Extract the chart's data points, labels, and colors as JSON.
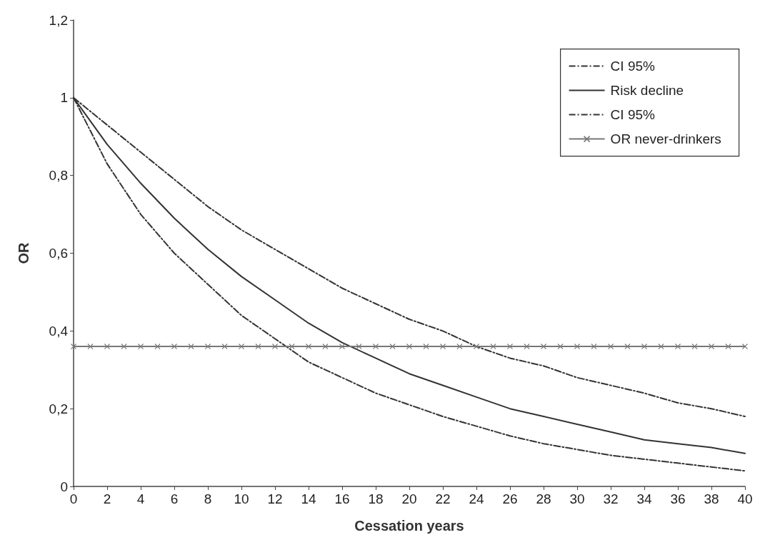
{
  "chart_data": {
    "type": "line",
    "xlabel": "Cessation years",
    "ylabel": "OR",
    "x": [
      0,
      2,
      4,
      6,
      8,
      10,
      12,
      14,
      16,
      18,
      20,
      22,
      24,
      26,
      28,
      30,
      32,
      34,
      36,
      38,
      40
    ],
    "series": [
      {
        "name": "CI 95%",
        "color": "#333333",
        "line_style": "dashed",
        "marker": "none",
        "values": [
          1,
          0.93,
          0.86,
          0.79,
          0.72,
          0.66,
          0.61,
          0.56,
          0.51,
          0.47,
          0.43,
          0.4,
          0.36,
          0.33,
          0.31,
          0.28,
          0.26,
          0.24,
          0.215,
          0.2,
          0.18
        ]
      },
      {
        "name": "Risk decline",
        "color": "#333333",
        "line_style": "solid",
        "marker": "none",
        "values": [
          1,
          0.88,
          0.78,
          0.69,
          0.61,
          0.54,
          0.48,
          0.42,
          0.37,
          0.33,
          0.29,
          0.26,
          0.23,
          0.2,
          0.18,
          0.16,
          0.14,
          0.12,
          0.11,
          0.1,
          0.085
        ]
      },
      {
        "name": "CI 95%",
        "color": "#333333",
        "line_style": "dashed",
        "marker": "none",
        "values": [
          1,
          0.83,
          0.7,
          0.6,
          0.52,
          0.44,
          0.38,
          0.32,
          0.28,
          0.24,
          0.21,
          0.18,
          0.155,
          0.13,
          0.11,
          0.095,
          0.08,
          0.07,
          0.06,
          0.05,
          0.04
        ]
      },
      {
        "name": "OR never-drinkers",
        "color": "#777777",
        "line_style": "solid",
        "marker": "cross",
        "x": [
          0,
          1,
          2,
          3,
          4,
          5,
          6,
          7,
          8,
          9,
          10,
          11,
          12,
          13,
          14,
          15,
          16,
          17,
          18,
          19,
          20,
          21,
          22,
          23,
          24,
          25,
          26,
          27,
          28,
          29,
          30,
          31,
          32,
          33,
          34,
          35,
          36,
          37,
          38,
          39,
          40
        ],
        "values": [
          0.36,
          0.36,
          0.36,
          0.36,
          0.36,
          0.36,
          0.36,
          0.36,
          0.36,
          0.36,
          0.36,
          0.36,
          0.36,
          0.36,
          0.36,
          0.36,
          0.36,
          0.36,
          0.36,
          0.36,
          0.36,
          0.36,
          0.36,
          0.36,
          0.36,
          0.36,
          0.36,
          0.36,
          0.36,
          0.36,
          0.36,
          0.36,
          0.36,
          0.36,
          0.36,
          0.36,
          0.36,
          0.36,
          0.36,
          0.36,
          0.36
        ]
      }
    ],
    "xlim": [
      0,
      40
    ],
    "xticks": [
      0,
      2,
      4,
      6,
      8,
      10,
      12,
      14,
      16,
      18,
      20,
      22,
      24,
      26,
      28,
      30,
      32,
      34,
      36,
      38,
      40
    ],
    "ylim": [
      0,
      1.2
    ],
    "yticks": [
      0,
      {
        "value": 0.2,
        "label": "0,2"
      },
      {
        "value": 0.4,
        "label": "0,4"
      },
      {
        "value": 0.6,
        "label": "0,6"
      },
      {
        "value": 0.8,
        "label": "0,8"
      },
      1,
      {
        "value": 1.2,
        "label": "1,2"
      }
    ],
    "grid": false,
    "legend": "top right"
  }
}
